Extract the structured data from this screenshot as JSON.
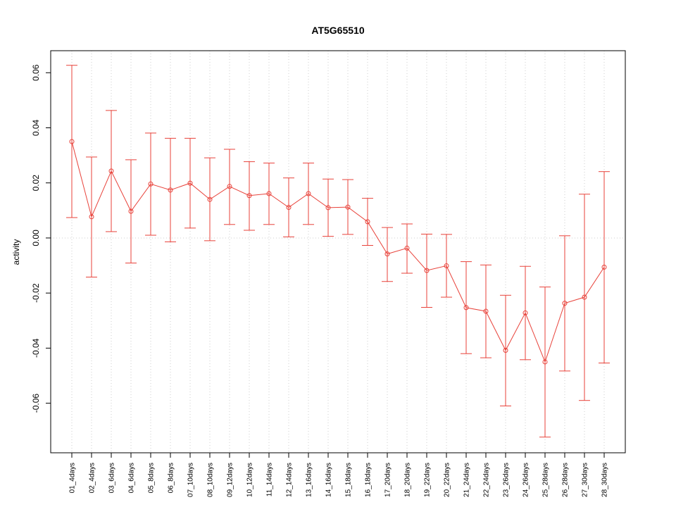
{
  "chart_data": {
    "type": "line",
    "title": "AT5G65510",
    "xlabel": "",
    "ylabel": "activity",
    "ylim": [
      -0.078,
      0.068
    ],
    "yticks": [
      -0.06,
      -0.04,
      -0.02,
      0.0,
      0.02,
      0.04,
      0.06
    ],
    "ytick_labels": [
      "-0.06",
      "-0.04",
      "-0.02",
      "0.00",
      "0.02",
      "0.04",
      "0.06"
    ],
    "grid": true,
    "series_color": "#e8423a",
    "grid_color": "#cccccc",
    "categories": [
      "01_4days",
      "02_4days",
      "03_6days",
      "04_6days",
      "05_8days",
      "06_8days",
      "07_10days",
      "08_10days",
      "09_12days",
      "10_12days",
      "11_14days",
      "12_14days",
      "13_16days",
      "14_16days",
      "15_18days",
      "16_18days",
      "17_20days",
      "18_20days",
      "19_22days",
      "20_22days",
      "21_24days",
      "22_24days",
      "23_26days",
      "24_26days",
      "25_28days",
      "26_28days",
      "27_30days",
      "28_30days"
    ],
    "values": [
      0.035,
      0.0077,
      0.0243,
      0.0097,
      0.0196,
      0.0174,
      0.0199,
      0.014,
      0.0187,
      0.0154,
      0.0161,
      0.0111,
      0.0161,
      0.011,
      0.0112,
      0.0059,
      -0.0058,
      -0.0037,
      -0.0118,
      -0.0101,
      -0.0253,
      -0.0266,
      -0.0408,
      -0.0272,
      -0.045,
      -0.0237,
      -0.0215,
      -0.0106
    ],
    "upper": [
      0.0627,
      0.0294,
      0.0463,
      0.0284,
      0.0381,
      0.0362,
      0.0362,
      0.0291,
      0.0322,
      0.0277,
      0.0272,
      0.0218,
      0.0272,
      0.0214,
      0.0212,
      0.0144,
      0.0038,
      0.0051,
      0.0014,
      0.0013,
      -0.0086,
      -0.0098,
      -0.0208,
      -0.0103,
      -0.0178,
      0.0008,
      0.0159,
      0.0241
    ],
    "lower": [
      0.0074,
      -0.0142,
      0.0023,
      -0.0091,
      0.001,
      -0.0014,
      0.0036,
      -0.001,
      0.0049,
      0.0028,
      0.0049,
      0.0004,
      0.0049,
      0.0006,
      0.0013,
      -0.0027,
      -0.0158,
      -0.0128,
      -0.0252,
      -0.0215,
      -0.042,
      -0.0435,
      -0.061,
      -0.0442,
      -0.0723,
      -0.0483,
      -0.059,
      -0.0454
    ]
  }
}
